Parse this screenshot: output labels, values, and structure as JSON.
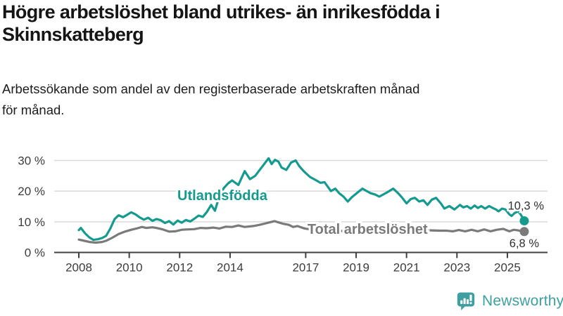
{
  "header": {
    "title": "Högre arbetslöshet bland utrikes- än inrikesfödda i\nSkinnskatteberg",
    "subtitle": "Arbetssökande som andel av den registerbaserade arbetskraften månad\nför månad."
  },
  "footer": {
    "brand": "Newsworthy",
    "logo_icon": "speech-bubble-bar-chart"
  },
  "colors": {
    "accent_teal": "#149A8F",
    "series_gray": "#7A7A7A",
    "grid": "#D9D9D9",
    "axis": "#3F3F3F",
    "axis_text": "#3C3C3C",
    "end_label_text": "#2F2F2F",
    "title_text": "#151515",
    "logo_teal": "#3F9FA0"
  },
  "chart_data": {
    "type": "line",
    "title": "",
    "xlabel": "",
    "ylabel": "",
    "grid": "horizontal",
    "legend_position": "inline-labels",
    "x_range": [
      2007.25,
      2026.6
    ],
    "y_range": [
      0,
      33
    ],
    "x_ticks": [
      {
        "value": 2008,
        "label": "2008"
      },
      {
        "value": 2010,
        "label": "2010"
      },
      {
        "value": 2012,
        "label": "2012"
      },
      {
        "value": 2014,
        "label": "2014"
      },
      {
        "value": 2017,
        "label": "2017"
      },
      {
        "value": 2019,
        "label": "2019"
      },
      {
        "value": 2021,
        "label": "2021"
      },
      {
        "value": 2023,
        "label": "2023"
      },
      {
        "value": 2025,
        "label": "2025"
      }
    ],
    "y_ticks": [
      {
        "value": 0,
        "label": "0 %"
      },
      {
        "value": 10,
        "label": "10 %"
      },
      {
        "value": 20,
        "label": "20 %"
      },
      {
        "value": 30,
        "label": "30 %"
      }
    ],
    "series": [
      {
        "id": "utlandsfodda",
        "name": "Utlandsfödda",
        "color": "#149A8F",
        "end_label": "10,3 %",
        "end_value": 10.3,
        "label_x": 2011.91,
        "label_y": 17.05,
        "end_label_x": 773,
        "end_label_dy": -16,
        "points": [
          [
            2008.0,
            7.3
          ],
          [
            2008.08,
            8.0
          ],
          [
            2008.25,
            6.2
          ],
          [
            2008.42,
            4.9
          ],
          [
            2008.58,
            4.1
          ],
          [
            2008.75,
            4.3
          ],
          [
            2008.92,
            4.7
          ],
          [
            2009.08,
            5.4
          ],
          [
            2009.25,
            7.8
          ],
          [
            2009.42,
            10.9
          ],
          [
            2009.58,
            12.1
          ],
          [
            2009.75,
            11.5
          ],
          [
            2009.92,
            12.3
          ],
          [
            2010.08,
            13.1
          ],
          [
            2010.25,
            12.4
          ],
          [
            2010.42,
            11.4
          ],
          [
            2010.58,
            10.7
          ],
          [
            2010.75,
            11.3
          ],
          [
            2010.92,
            10.3
          ],
          [
            2011.08,
            10.9
          ],
          [
            2011.25,
            10.5
          ],
          [
            2011.42,
            9.6
          ],
          [
            2011.58,
            10.2
          ],
          [
            2011.75,
            9.1
          ],
          [
            2011.92,
            10.4
          ],
          [
            2012.08,
            9.7
          ],
          [
            2012.25,
            10.6
          ],
          [
            2012.42,
            10.1
          ],
          [
            2012.58,
            11.0
          ],
          [
            2012.75,
            12.0
          ],
          [
            2012.92,
            11.6
          ],
          [
            2013.08,
            13.2
          ],
          [
            2013.25,
            15.5
          ],
          [
            2013.4,
            13.6
          ],
          [
            2013.58,
            18.5
          ],
          [
            2013.75,
            21.0
          ],
          [
            2013.92,
            22.5
          ],
          [
            2014.08,
            23.5
          ],
          [
            2014.33,
            22.0
          ],
          [
            2014.58,
            26.5
          ],
          [
            2014.79,
            23.9
          ],
          [
            2015.0,
            25.0
          ],
          [
            2015.21,
            27.3
          ],
          [
            2015.53,
            30.7
          ],
          [
            2015.65,
            28.8
          ],
          [
            2015.78,
            30.2
          ],
          [
            2015.92,
            29.6
          ],
          [
            2016.04,
            27.7
          ],
          [
            2016.23,
            26.9
          ],
          [
            2016.42,
            29.3
          ],
          [
            2016.6,
            30.0
          ],
          [
            2016.75,
            28.1
          ],
          [
            2016.92,
            26.5
          ],
          [
            2017.17,
            24.6
          ],
          [
            2017.42,
            23.5
          ],
          [
            2017.58,
            22.7
          ],
          [
            2017.75,
            22.9
          ],
          [
            2018.0,
            20.0
          ],
          [
            2018.17,
            20.8
          ],
          [
            2018.33,
            19.3
          ],
          [
            2018.5,
            18.2
          ],
          [
            2018.67,
            16.6
          ],
          [
            2018.83,
            18.0
          ],
          [
            2019.08,
            19.7
          ],
          [
            2019.25,
            20.8
          ],
          [
            2019.42,
            20.0
          ],
          [
            2019.58,
            19.3
          ],
          [
            2019.75,
            18.9
          ],
          [
            2019.92,
            18.2
          ],
          [
            2020.08,
            18.9
          ],
          [
            2020.25,
            19.7
          ],
          [
            2020.47,
            20.8
          ],
          [
            2020.67,
            19.3
          ],
          [
            2020.83,
            17.8
          ],
          [
            2021.0,
            16.0
          ],
          [
            2021.17,
            17.4
          ],
          [
            2021.33,
            17.8
          ],
          [
            2021.5,
            16.6
          ],
          [
            2021.67,
            17.0
          ],
          [
            2021.83,
            15.5
          ],
          [
            2022.0,
            17.2
          ],
          [
            2022.17,
            17.8
          ],
          [
            2022.37,
            15.9
          ],
          [
            2022.5,
            14.3
          ],
          [
            2022.7,
            15.1
          ],
          [
            2022.9,
            14.0
          ],
          [
            2023.12,
            15.5
          ],
          [
            2023.25,
            14.7
          ],
          [
            2023.4,
            15.1
          ],
          [
            2023.55,
            14.3
          ],
          [
            2023.7,
            15.3
          ],
          [
            2023.83,
            14.5
          ],
          [
            2023.96,
            15.1
          ],
          [
            2024.12,
            14.3
          ],
          [
            2024.28,
            15.1
          ],
          [
            2024.42,
            14.5
          ],
          [
            2024.55,
            14.0
          ],
          [
            2024.65,
            13.4
          ],
          [
            2024.79,
            14.3
          ],
          [
            2024.92,
            14.0
          ],
          [
            2025.08,
            12.4
          ],
          [
            2025.17,
            11.9
          ],
          [
            2025.28,
            12.8
          ],
          [
            2025.42,
            13.4
          ],
          [
            2025.53,
            12.4
          ],
          [
            2025.67,
            10.3
          ]
        ]
      },
      {
        "id": "total",
        "name": "Total arbetslöshet",
        "color": "#7A7A7A",
        "end_label": "6,8 %",
        "end_value": 6.8,
        "label_x": 2017.07,
        "label_y": 6.1,
        "end_label_x": 766,
        "end_label_dy": 22,
        "points": [
          [
            2008.0,
            4.2
          ],
          [
            2008.17,
            3.9
          ],
          [
            2008.42,
            3.4
          ],
          [
            2008.67,
            3.2
          ],
          [
            2008.92,
            3.4
          ],
          [
            2009.08,
            3.8
          ],
          [
            2009.33,
            4.8
          ],
          [
            2009.58,
            6.0
          ],
          [
            2009.83,
            6.8
          ],
          [
            2010.08,
            7.4
          ],
          [
            2010.33,
            7.9
          ],
          [
            2010.5,
            8.3
          ],
          [
            2010.67,
            8.0
          ],
          [
            2010.92,
            8.2
          ],
          [
            2011.08,
            8.0
          ],
          [
            2011.33,
            7.5
          ],
          [
            2011.58,
            6.8
          ],
          [
            2011.83,
            6.9
          ],
          [
            2012.08,
            7.4
          ],
          [
            2012.33,
            7.5
          ],
          [
            2012.58,
            7.6
          ],
          [
            2012.83,
            8.0
          ],
          [
            2013.08,
            7.9
          ],
          [
            2013.33,
            8.1
          ],
          [
            2013.58,
            7.8
          ],
          [
            2013.83,
            8.4
          ],
          [
            2014.08,
            8.3
          ],
          [
            2014.33,
            8.8
          ],
          [
            2014.58,
            8.3
          ],
          [
            2014.92,
            8.6
          ],
          [
            2015.17,
            9.0
          ],
          [
            2015.42,
            9.5
          ],
          [
            2015.76,
            10.2
          ],
          [
            2015.92,
            9.8
          ],
          [
            2016.08,
            9.4
          ],
          [
            2016.33,
            9.0
          ],
          [
            2016.5,
            8.3
          ],
          [
            2016.67,
            8.6
          ],
          [
            2016.92,
            7.9
          ],
          [
            2017.17,
            7.5
          ],
          [
            2017.42,
            7.9
          ],
          [
            2017.67,
            7.5
          ],
          [
            2017.92,
            7.3
          ],
          [
            2018.25,
            7.1
          ],
          [
            2018.58,
            6.9
          ],
          [
            2018.92,
            7.0
          ],
          [
            2019.25,
            7.2
          ],
          [
            2019.58,
            7.4
          ],
          [
            2019.92,
            7.6
          ],
          [
            2020.25,
            8.2
          ],
          [
            2020.5,
            8.6
          ],
          [
            2020.75,
            8.3
          ],
          [
            2021.0,
            7.9
          ],
          [
            2021.33,
            7.5
          ],
          [
            2021.67,
            7.3
          ],
          [
            2022.0,
            7.2
          ],
          [
            2022.33,
            7.1
          ],
          [
            2022.58,
            7.1
          ],
          [
            2022.83,
            6.9
          ],
          [
            2023.08,
            7.3
          ],
          [
            2023.33,
            6.9
          ],
          [
            2023.58,
            7.4
          ],
          [
            2023.83,
            6.9
          ],
          [
            2024.08,
            7.5
          ],
          [
            2024.33,
            6.9
          ],
          [
            2024.58,
            7.4
          ],
          [
            2024.83,
            7.7
          ],
          [
            2025.08,
            6.9
          ],
          [
            2025.25,
            7.4
          ],
          [
            2025.42,
            7.2
          ],
          [
            2025.67,
            6.8
          ]
        ]
      }
    ]
  }
}
